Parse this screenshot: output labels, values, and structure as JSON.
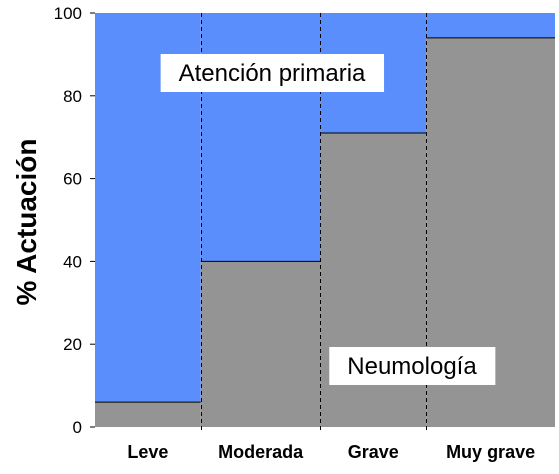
{
  "chart_data": {
    "type": "bar",
    "layout": "stacked-variable-width",
    "ylabel": "% Actuación",
    "ylim": [
      0,
      100
    ],
    "yticks": [
      0,
      20,
      40,
      60,
      80,
      100
    ],
    "categories": [
      "Leve",
      "Moderada",
      "Grave",
      "Muy grave"
    ],
    "category_widths": [
      23,
      26,
      23,
      28
    ],
    "series": [
      {
        "name": "Neumología",
        "values": [
          6,
          40,
          71,
          94
        ],
        "color": "#949494"
      },
      {
        "name": "Atención primaria",
        "values": [
          94,
          60,
          29,
          6
        ],
        "color": "#5b8efd"
      }
    ],
    "annotations": [
      {
        "text": "Atención primaria",
        "series": "Atención primaria"
      },
      {
        "text": "Neumología",
        "series": "Neumología"
      }
    ],
    "grid": false
  }
}
